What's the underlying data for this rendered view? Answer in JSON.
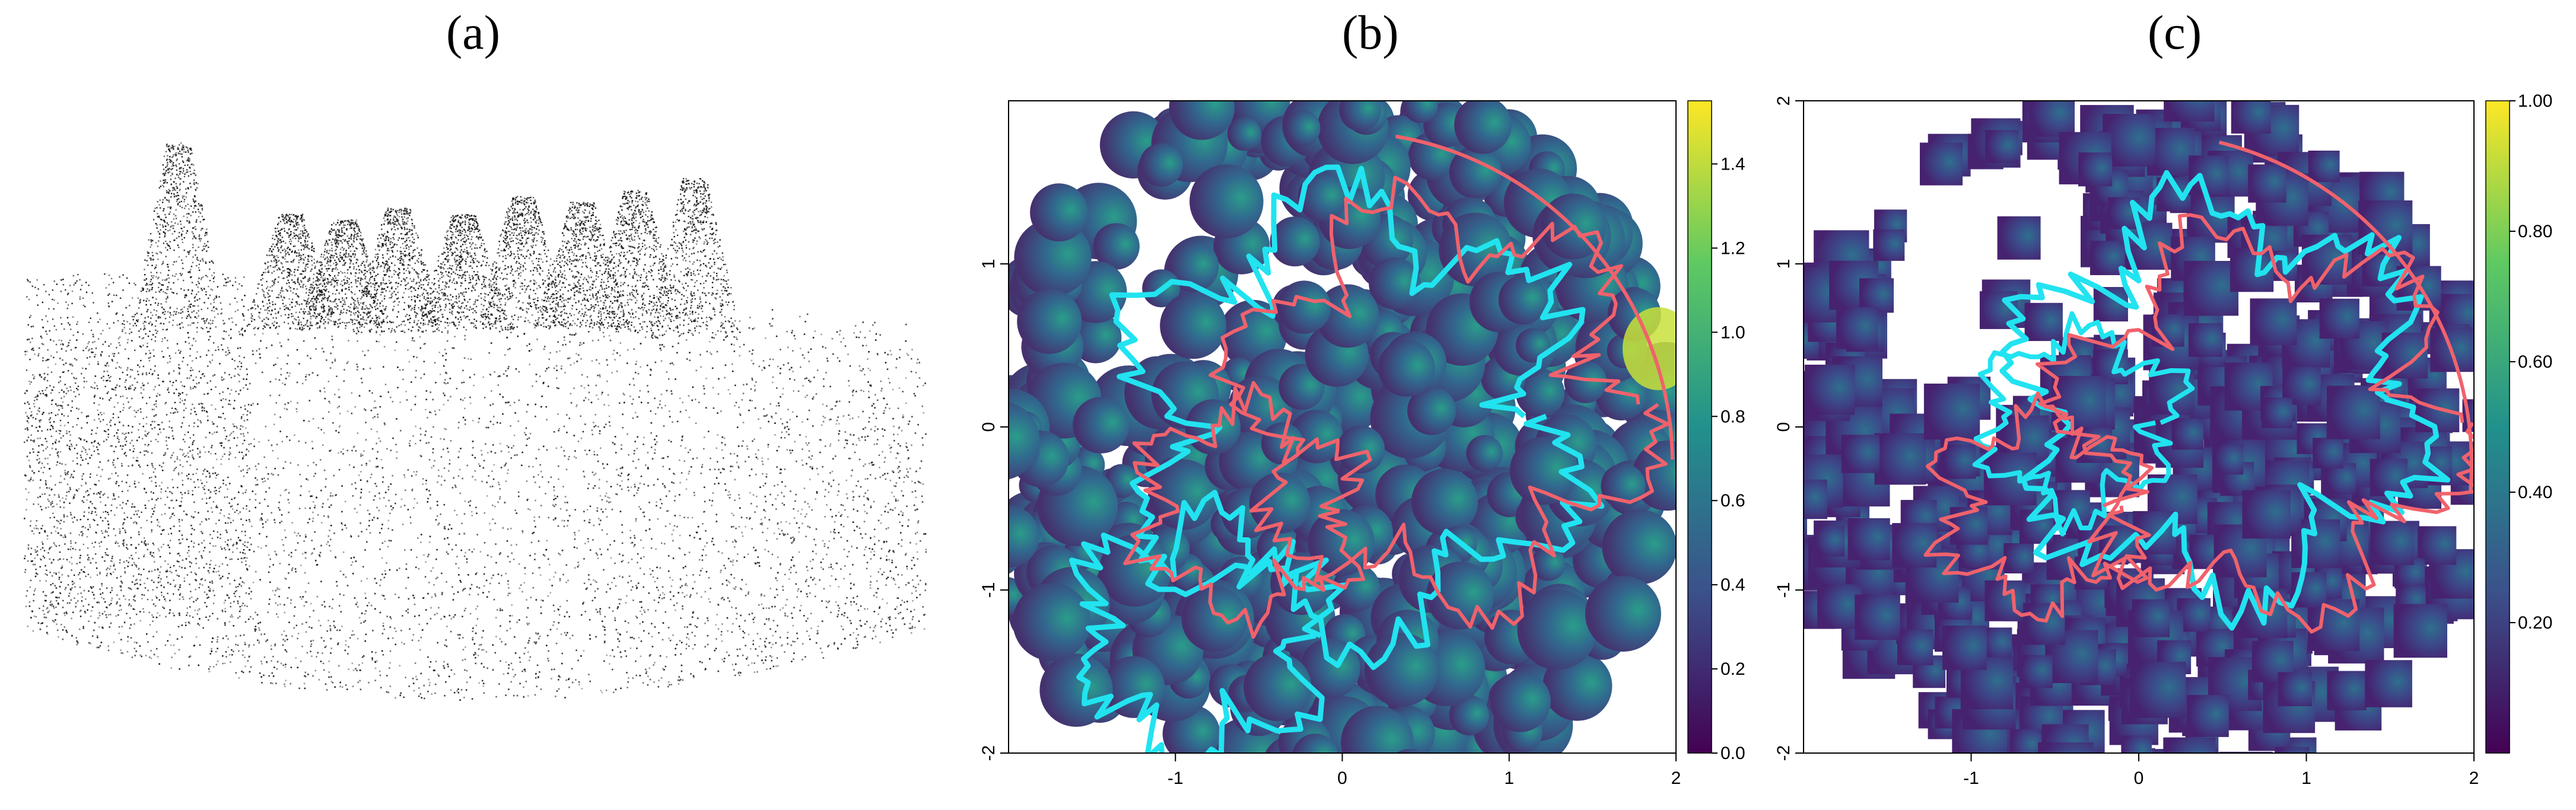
{
  "panels": {
    "a": {
      "label": "(a)"
    },
    "b": {
      "label": "(b)"
    },
    "c": {
      "label": "(c)"
    }
  },
  "colors": {
    "cyan_contour": "#22e3f0",
    "red_contour": "#f0626c",
    "viridis": [
      "#440154",
      "#3b528b",
      "#21918c",
      "#5ec962",
      "#fde725"
    ]
  },
  "chart_data": [
    {
      "panel": "(a)",
      "type": "other",
      "description_kind": "point-cloud-image"
    },
    {
      "panel": "(b)",
      "type": "heatmap",
      "title": "",
      "xlabel": "",
      "ylabel": "",
      "xlim": [
        -2,
        2
      ],
      "ylim": [
        -2,
        2
      ],
      "x_ticks": [
        "-1",
        "0",
        "1",
        "2"
      ],
      "y_ticks": [
        "-2",
        "-1",
        "0",
        "1"
      ],
      "colorbar_ticks": [
        "0.0",
        "0.2",
        "0.4",
        "0.6",
        "0.8",
        "1.0",
        "1.2",
        "1.4"
      ],
      "colorbar_range": [
        0,
        1.55
      ],
      "grid": false,
      "legend": "colorbar-right",
      "contours": [
        "cyan",
        "red"
      ]
    },
    {
      "panel": "(c)",
      "type": "heatmap",
      "title": "",
      "xlabel": "",
      "ylabel": "",
      "xlim": [
        -2,
        2
      ],
      "ylim": [
        -2,
        2
      ],
      "x_ticks": [
        "-1",
        "0",
        "1",
        "2"
      ],
      "y_ticks": [
        "-2",
        "-1",
        "0",
        "1",
        "2"
      ],
      "colorbar_ticks": [
        "0.20",
        "0.40",
        "0.60",
        "0.80",
        "1.00"
      ],
      "colorbar_range": [
        0,
        1.0
      ],
      "grid": false,
      "legend": "colorbar-right",
      "contours": [
        "cyan",
        "red"
      ]
    }
  ]
}
